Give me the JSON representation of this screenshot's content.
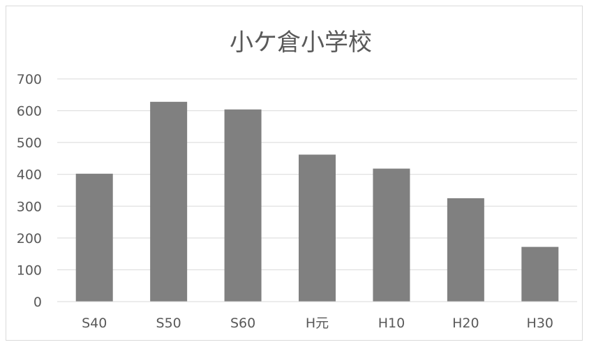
{
  "chart_data": {
    "type": "bar",
    "title": "小ケ倉小学校",
    "categories": [
      "S40",
      "S50",
      "S60",
      "H元",
      "H10",
      "H20",
      "H30"
    ],
    "values": [
      402,
      628,
      604,
      462,
      418,
      325,
      172
    ],
    "ylim": [
      0,
      700
    ],
    "yticks": [
      0,
      100,
      200,
      300,
      400,
      500,
      600,
      700
    ],
    "grid": true,
    "legend": "none",
    "bar_color": "#808080",
    "gridline_color": "#d9d9d9"
  }
}
